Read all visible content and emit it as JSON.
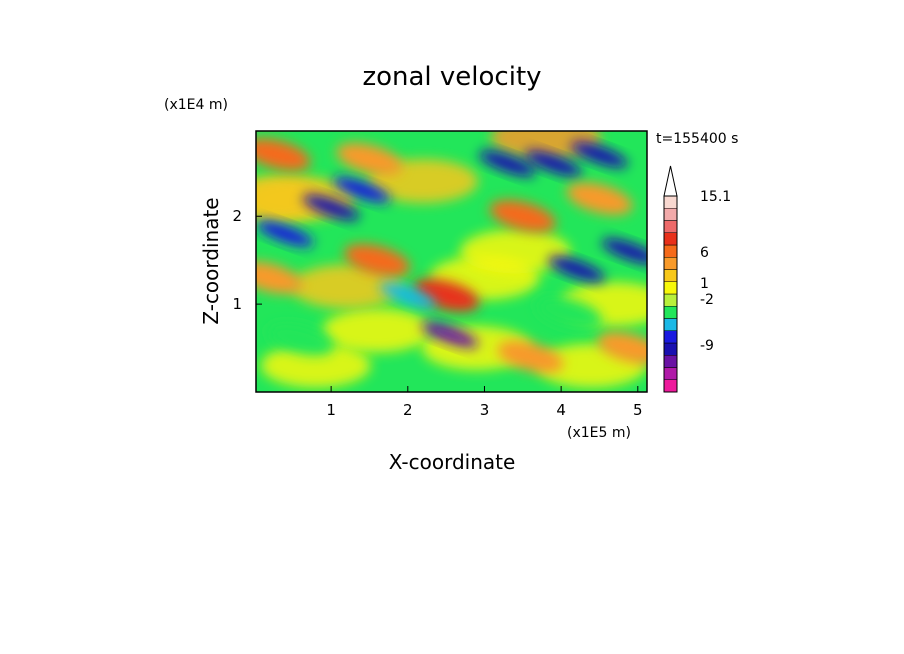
{
  "chart_data": {
    "type": "heatmap",
    "title": "zonal velocity",
    "xlabel": "X-coordinate",
    "ylabel": "Z-coordinate",
    "x_scale_label": "(x1E5 m)",
    "y_scale_label": "(x1E4 m)",
    "time_label": "t=155400 s",
    "xlim": [
      0.02,
      5.12
    ],
    "ylim": [
      0.0,
      2.97
    ],
    "x_ticks": [
      "1",
      "2",
      "3",
      "4",
      "5"
    ],
    "x_tick_values": [
      1,
      2,
      3,
      4,
      5
    ],
    "y_ticks": [
      "1",
      "2"
    ],
    "y_tick_values": [
      1,
      2
    ],
    "colorbar": {
      "extend": "max",
      "label_texts": [
        "15.1",
        "6",
        "1",
        "-2",
        "-9"
      ],
      "bands": [
        {
          "color": "#ee1a9c"
        },
        {
          "color": "#b01aa8"
        },
        {
          "color": "#6a12a4"
        },
        {
          "color": "#1a10b0"
        },
        {
          "color": "#1a1ae0"
        },
        {
          "color": "#1ab8e6"
        },
        {
          "color": "#22e65a"
        },
        {
          "color": "#b8f03c"
        },
        {
          "color": "#f8f80a"
        },
        {
          "color": "#f8c81a"
        },
        {
          "color": "#f89a2a"
        },
        {
          "color": "#f56a1a"
        },
        {
          "color": "#e8301a"
        },
        {
          "color": "#ee6a6a"
        },
        {
          "color": "#f2aaaa"
        },
        {
          "color": "#f8d8d0"
        }
      ]
    },
    "field_description": "Filled contour map of zonal velocity; values range from about -12 (magenta/blue) to above 15 (pink). Dominant values are green/yellow/orange, with diagonal blue bands in the upper part and a narrow blue/orange streak near x=2.4-2.6.",
    "features": [
      {
        "x": 1.0,
        "z": 2.1,
        "value": -6
      },
      {
        "x": 1.4,
        "z": 2.3,
        "value": -4
      },
      {
        "x": 0.4,
        "z": 1.8,
        "value": -4
      },
      {
        "x": 3.3,
        "z": 2.6,
        "value": -7
      },
      {
        "x": 3.9,
        "z": 2.6,
        "value": -5
      },
      {
        "x": 4.5,
        "z": 2.7,
        "value": -7
      },
      {
        "x": 4.2,
        "z": 1.4,
        "value": -5
      },
      {
        "x": 4.9,
        "z": 1.6,
        "value": -5
      },
      {
        "x": 2.55,
        "z": 0.65,
        "value": -8
      },
      {
        "x": 2.5,
        "z": 1.1,
        "value": 7
      },
      {
        "x": 0.3,
        "z": 2.7,
        "value": 6
      },
      {
        "x": 0.2,
        "z": 1.3,
        "value": 5
      },
      {
        "x": 1.5,
        "z": 2.65,
        "value": 5
      },
      {
        "x": 1.6,
        "z": 1.5,
        "value": 6
      },
      {
        "x": 3.5,
        "z": 2.0,
        "value": 6
      },
      {
        "x": 4.5,
        "z": 2.2,
        "value": 5
      },
      {
        "x": 4.9,
        "z": 0.5,
        "value": 4
      },
      {
        "x": 3.6,
        "z": 0.4,
        "value": 4
      },
      {
        "x": 2.0,
        "z": 1.1,
        "value": -1
      },
      {
        "x": 0.6,
        "z": 0.6,
        "value": 0
      },
      {
        "x": 4.1,
        "z": 0.9,
        "value": 0
      }
    ]
  }
}
